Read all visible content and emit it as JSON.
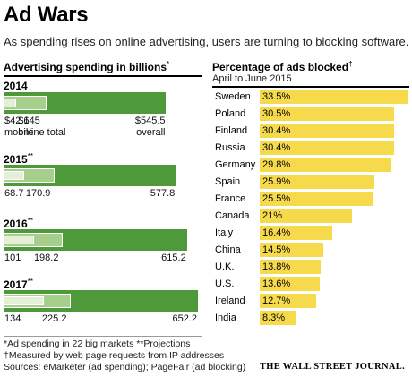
{
  "header": {
    "title": "Ad Wars",
    "subtitle": "As spending rises on online advertising, users are turning to blocking software."
  },
  "footer": {
    "note1": "*Ad spending in 22 big markets  **Projections",
    "note2": "†Measured by web page requests from IP addresses",
    "sources": "Sources: eMarketer (ad spending); PageFair (ad blocking)",
    "publisher": "THE WALL STREET JOURNAL."
  },
  "colors": {
    "green": "#4e9a3a",
    "green_mid": "#a6cf8c",
    "green_light": "#e3f0d5",
    "yellow": "#f7d94c"
  },
  "chart_data": [
    {
      "type": "bar",
      "title": "Advertising spending in billions",
      "title_mark": "*",
      "unit": "billions",
      "xlim": [
        0,
        652.2
      ],
      "groups": [
        {
          "year": "2014",
          "mark": "",
          "mobile": 42.6,
          "online_total": 145,
          "overall": 545.5,
          "labels": [
            "$42.6",
            "$145",
            "$545.5"
          ],
          "sublabels": [
            "mobile",
            "online total",
            "overall"
          ]
        },
        {
          "year": "2015",
          "mark": "**",
          "mobile": 68.7,
          "online_total": 170.9,
          "overall": 577.8,
          "labels": [
            "68.7",
            "170.9",
            "577.8"
          ]
        },
        {
          "year": "2016",
          "mark": "**",
          "mobile": 101,
          "online_total": 198.2,
          "overall": 615.2,
          "labels": [
            "101",
            "198.2",
            "615.2"
          ]
        },
        {
          "year": "2017",
          "mark": "**",
          "mobile": 134,
          "online_total": 225.2,
          "overall": 652.2,
          "labels": [
            "134",
            "225.2",
            "652.2"
          ]
        }
      ]
    },
    {
      "type": "bar",
      "title": "Percentage of ads blocked",
      "title_mark": "†",
      "subtitle": "April to June 2015",
      "xlim": [
        0,
        33.5
      ],
      "categories": [
        "Sweden",
        "Poland",
        "Finland",
        "Russia",
        "Germany",
        "Spain",
        "France",
        "Canada",
        "Italy",
        "China",
        "U.K.",
        "U.S.",
        "Ireland",
        "India"
      ],
      "values": [
        33.5,
        30.5,
        30.4,
        30.4,
        29.8,
        25.9,
        25.5,
        21,
        16.4,
        14.5,
        13.8,
        13.6,
        12.7,
        8.3
      ],
      "labels": [
        "33.5%",
        "30.5%",
        "30.4%",
        "30.4%",
        "29.8%",
        "25.9%",
        "25.5%",
        "21%",
        "16.4%",
        "14.5%",
        "13.8%",
        "13.6%",
        "12.7%",
        "8.3%"
      ]
    }
  ]
}
